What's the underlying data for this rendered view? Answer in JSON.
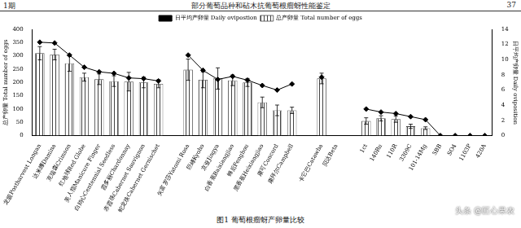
{
  "header": {
    "left": "1期",
    "center": "部分葡萄品种和砧木抗葡萄根瘤蚜性能鉴定",
    "right": "37"
  },
  "caption": "图1 葡萄根瘤蚜产卵量比较",
  "watermark": "头条 @匠心果农",
  "chart_data": {
    "type": "bar",
    "y_label": "总产卵量 Total number of eggs",
    "y2_label": "日平均产卵量 Daily oviposition",
    "categories": [
      "龙眼Postharvest Longan",
      "达米娜Damina",
      "克瑞森Crimson",
      "红地球Red Globe",
      "美人指Manicure Finger",
      "白鸡心Centennial Seedless",
      "霞多丽Chardonnay",
      "赤霞珠Cabernet Sauvignon",
      "蛇龙珠Cabernet Gernischet",
      null,
      "矢富罗莎Yatomi Rosa",
      "巨峰Kyoho",
      "京亚Jingya",
      "白香蕉Baixiangjiao",
      "蜂后Fenghou",
      "黑香蕉Heixiangjiao",
      "康可Concord",
      "康拜尔Campbell",
      null,
      "卡它巴Catawba",
      "贝达Beta",
      null,
      "1ct",
      "140Ru",
      "110R",
      "3309C",
      "101-14Mg",
      "5BB",
      "SO4",
      "1103P",
      "420A"
    ],
    "series": [
      {
        "name": "总产卵量 Total number of eggs",
        "type": "bar",
        "color": "#444444",
        "values": [
          310,
          305,
          272,
          220,
          212,
          205,
          203,
          200,
          195,
          null,
          248,
          210,
          215,
          208,
          200,
          125,
          95,
          95,
          null,
          215,
          null,
          null,
          55,
          65,
          62,
          35,
          28,
          0,
          0,
          0,
          0
        ],
        "errors": [
          25,
          20,
          30,
          15,
          20,
          20,
          35,
          20,
          15,
          null,
          40,
          30,
          40,
          20,
          15,
          20,
          20,
          12,
          null,
          20,
          null,
          null,
          12,
          10,
          12,
          8,
          5,
          0,
          0,
          0,
          0
        ]
      },
      {
        "name": "日平均产卵量 Daily ovipostion",
        "type": "line",
        "axis": "y2",
        "color": "#000000",
        "marker": "diamond",
        "values": [
          12.3,
          12.2,
          10.6,
          9.0,
          8.4,
          8.2,
          7.6,
          7.5,
          7.2,
          null,
          10.6,
          8.6,
          7.4,
          7.8,
          7.3,
          6.6,
          6.0,
          6.8,
          null,
          7.7,
          null,
          null,
          3.5,
          3.1,
          2.9,
          2.5,
          2.1,
          0,
          0,
          0,
          0
        ]
      }
    ],
    "ylim": [
      0,
      400
    ],
    "yticks": [
      0,
      50,
      100,
      150,
      200,
      250,
      300,
      350,
      400
    ],
    "y2lim": [
      0,
      14
    ],
    "y2ticks": [
      0,
      2,
      4,
      6,
      8,
      10,
      12,
      14
    ],
    "legend": "top",
    "grid": false
  }
}
